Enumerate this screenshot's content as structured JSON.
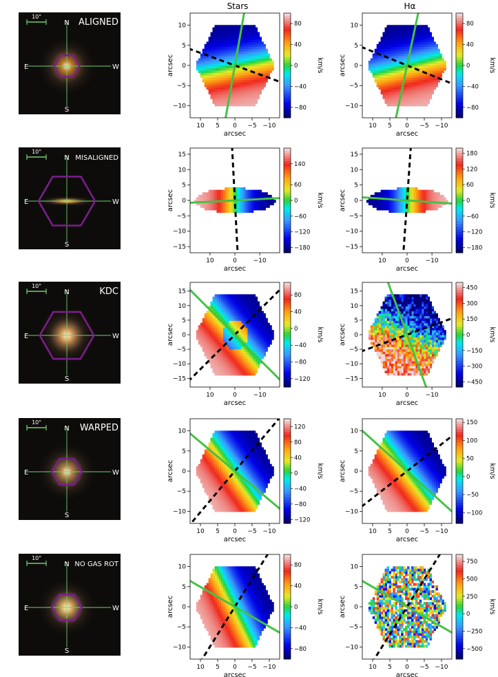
{
  "figure": {
    "column_titles": [
      "Stars",
      "Hα"
    ],
    "axis_label": "arcsec",
    "colorbar_unit": "km/s",
    "compass": {
      "north": "N",
      "south": "S",
      "east": "E",
      "west": "W"
    },
    "scale_bar_label": "10\""
  },
  "chart_data": [
    {
      "type": "heatmap",
      "row": "ALIGNED",
      "map": "Stars",
      "xlabel": "arcsec",
      "ylabel": "arcsec",
      "xlim": [
        13,
        -13
      ],
      "ylim": [
        -13,
        13
      ],
      "xticks": [
        10,
        5,
        0,
        -5,
        -10
      ],
      "yticks": [
        10,
        5,
        0,
        -5,
        -10
      ],
      "colorbar": {
        "label": "km/s",
        "ticks": [
          80,
          40,
          0,
          -40,
          -80
        ],
        "range": [
          -100,
          100
        ]
      },
      "footprint": "hexagon",
      "footprint_radius": 11.5,
      "rotation_field": {
        "gradient_angle_deg": 80,
        "sign": -1
      },
      "stellar_axis_angle_deg": 80,
      "gas_axis_angle_deg": -20
    },
    {
      "type": "heatmap",
      "row": "ALIGNED",
      "map": "Hα",
      "xlabel": "arcsec",
      "ylabel": "arcsec",
      "xlim": [
        13,
        -13
      ],
      "ylim": [
        -13,
        13
      ],
      "xticks": [
        10,
        5,
        0,
        -5,
        -10
      ],
      "yticks": [
        10,
        5,
        0,
        -5,
        -10
      ],
      "colorbar": {
        "label": "km/s",
        "ticks": [
          80,
          40,
          0,
          -40,
          -80
        ],
        "range": [
          -100,
          100
        ]
      },
      "footprint": "hexagon",
      "footprint_radius": 11.5,
      "rotation_field": {
        "gradient_angle_deg": 78,
        "sign": -1
      },
      "stellar_axis_angle_deg": 78,
      "gas_axis_angle_deg": -22
    },
    {
      "type": "heatmap",
      "row": "MISALIGNED",
      "map": "Stars",
      "xlabel": "arcsec",
      "ylabel": "arcsec",
      "xlim": [
        18,
        -18
      ],
      "ylim": [
        -17,
        17
      ],
      "xticks": [
        10,
        0,
        -10
      ],
      "yticks": [
        15,
        10,
        5,
        0,
        -5,
        -10,
        -15
      ],
      "colorbar": {
        "label": "km/s",
        "ticks": [
          140,
          60,
          0,
          -60,
          -120,
          -180
        ],
        "range": [
          -200,
          200
        ]
      },
      "footprint": "ellipse",
      "footprint_radius": 16,
      "footprint_aspect": 0.25,
      "rotation_field": {
        "gradient_angle_deg": 0,
        "sign": 1
      },
      "stellar_axis_angle_deg": 3,
      "gas_axis_angle_deg": 93
    },
    {
      "type": "heatmap",
      "row": "MISALIGNED",
      "map": "Hα",
      "xlabel": "arcsec",
      "ylabel": "arcsec",
      "xlim": [
        18,
        -18
      ],
      "ylim": [
        -17,
        17
      ],
      "xticks": [
        10,
        0,
        -10
      ],
      "yticks": [
        15,
        10,
        5,
        0,
        -5,
        -10,
        -15
      ],
      "colorbar": {
        "label": "km/s",
        "ticks": [
          180,
          120,
          60,
          0,
          -60,
          -120,
          -180
        ],
        "range": [
          -200,
          200
        ]
      },
      "footprint": "ellipse",
      "footprint_radius": 16,
      "footprint_aspect": 0.25,
      "rotation_field": {
        "gradient_angle_deg": 0,
        "sign": -1
      },
      "stellar_axis_angle_deg": -4,
      "gas_axis_angle_deg": 86
    },
    {
      "type": "heatmap",
      "row": "KDC",
      "map": "Stars",
      "xlabel": "arcsec",
      "ylabel": "arcsec",
      "xlim": [
        18,
        -18
      ],
      "ylim": [
        -18,
        18
      ],
      "xticks": [
        10,
        0,
        -10
      ],
      "yticks": [
        15,
        10,
        5,
        0,
        -5,
        -10,
        -15
      ],
      "colorbar": {
        "label": "km/s",
        "ticks": [
          80,
          40,
          0,
          -40,
          -80,
          -120
        ],
        "range": [
          -140,
          110
        ]
      },
      "footprint": "hexagon",
      "footprint_radius": 16,
      "rotation_field": {
        "gradient_angle_deg": -45,
        "sign": 1,
        "core_flip": true
      },
      "stellar_axis_angle_deg": -45,
      "gas_axis_angle_deg": 45
    },
    {
      "type": "heatmap",
      "row": "KDC",
      "map": "Hα",
      "xlabel": "arcsec",
      "ylabel": "arcsec",
      "xlim": [
        18,
        -18
      ],
      "ylim": [
        -18,
        18
      ],
      "xticks": [
        10,
        0,
        -10
      ],
      "yticks": [
        15,
        10,
        5,
        0,
        -5,
        -10,
        -15
      ],
      "colorbar": {
        "label": "km/s",
        "ticks": [
          450,
          300,
          150,
          0,
          -150,
          -300,
          -450
        ],
        "range": [
          -500,
          500
        ]
      },
      "footprint": "hexagon",
      "footprint_radius": 16,
      "rotation_field": {
        "gradient_angle_deg": -70,
        "sign": 1,
        "noisy": true
      },
      "stellar_axis_angle_deg": -70,
      "gas_axis_angle_deg": 20
    },
    {
      "type": "heatmap",
      "row": "WARPED",
      "map": "Stars",
      "xlabel": "arcsec",
      "ylabel": "arcsec",
      "xlim": [
        13,
        -13
      ],
      "ylim": [
        -13,
        13
      ],
      "xticks": [
        10,
        5,
        0,
        -5,
        -10
      ],
      "yticks": [
        10,
        5,
        0,
        -5,
        -10
      ],
      "colorbar": {
        "label": "km/s",
        "ticks": [
          120,
          80,
          40,
          0,
          -40,
          -80,
          -120
        ],
        "range": [
          -130,
          140
        ]
      },
      "footprint": "hexagon",
      "footprint_radius": 11.5,
      "rotation_field": {
        "gradient_angle_deg": -40,
        "sign": 1
      },
      "stellar_axis_angle_deg": -40,
      "gas_axis_angle_deg": 50
    },
    {
      "type": "heatmap",
      "row": "WARPED",
      "map": "Hα",
      "xlabel": "arcsec",
      "ylabel": "arcsec",
      "xlim": [
        13,
        -13
      ],
      "ylim": [
        -13,
        13
      ],
      "xticks": [
        10,
        5,
        0,
        -5,
        -10
      ],
      "yticks": [
        10,
        5,
        0,
        -5,
        -10
      ],
      "colorbar": {
        "label": "km/s",
        "ticks": [
          150,
          100,
          50,
          0,
          -50,
          -100
        ],
        "range": [
          -130,
          160
        ]
      },
      "footprint": "hexagon",
      "footprint_radius": 11.5,
      "rotation_field": {
        "gradient_angle_deg": -42,
        "sign": 1
      },
      "stellar_axis_angle_deg": -42,
      "gas_axis_angle_deg": 38
    },
    {
      "type": "heatmap",
      "row": "NO GAS ROT",
      "map": "Stars",
      "xlabel": "arcsec",
      "ylabel": "arcsec",
      "xlim": [
        13,
        -13
      ],
      "ylim": [
        -13,
        13
      ],
      "xticks": [
        10,
        5,
        0,
        -5,
        -10
      ],
      "yticks": [
        10,
        5,
        0,
        -5,
        -10
      ],
      "colorbar": {
        "label": "km/s",
        "ticks": [
          80,
          40,
          0,
          -40,
          -80
        ],
        "range": [
          -100,
          100
        ]
      },
      "footprint": "hexagon",
      "footprint_radius": 11.5,
      "rotation_field": {
        "gradient_angle_deg": -30,
        "sign": 1
      },
      "stellar_axis_angle_deg": -30,
      "gas_axis_angle_deg": 58
    },
    {
      "type": "heatmap",
      "row": "NO GAS ROT",
      "map": "Hα",
      "xlabel": "arcsec",
      "ylabel": "arcsec",
      "xlim": [
        13,
        -13
      ],
      "ylim": [
        -13,
        13
      ],
      "xticks": [
        10,
        5,
        0,
        -5,
        -10
      ],
      "yticks": [
        10,
        5,
        0,
        -5,
        -10
      ],
      "colorbar": {
        "label": "km/s",
        "ticks": [
          750,
          500,
          250,
          0,
          -250,
          -500
        ],
        "range": [
          -650,
          850
        ]
      },
      "footprint": "hexagon",
      "footprint_radius": 11.5,
      "rotation_field": {
        "gradient_angle_deg": 0,
        "sign": 1,
        "random": true
      },
      "stellar_axis_angle_deg": -30,
      "gas_axis_angle_deg": 58
    }
  ],
  "rows": [
    {
      "label": "ALIGNED",
      "image_tone": "#c07a2a",
      "hex_scale": 0.55
    },
    {
      "label": "MISALIGNED",
      "image_tone": "#d9a040",
      "hex_scale": 1.0
    },
    {
      "label": "KDC",
      "image_tone": "#e0a060",
      "hex_scale": 0.95
    },
    {
      "label": "WARPED",
      "image_tone": "#b88a50",
      "hex_scale": 0.65
    },
    {
      "label": "NO GAS ROT",
      "image_tone": "#d9aa60",
      "hex_scale": 0.65
    }
  ],
  "colors": {
    "stellar_axis": "#44c244",
    "gas_axis": "#000000",
    "hexagon": "#7a1e8c",
    "scale_bar": "#6fcf6f"
  }
}
